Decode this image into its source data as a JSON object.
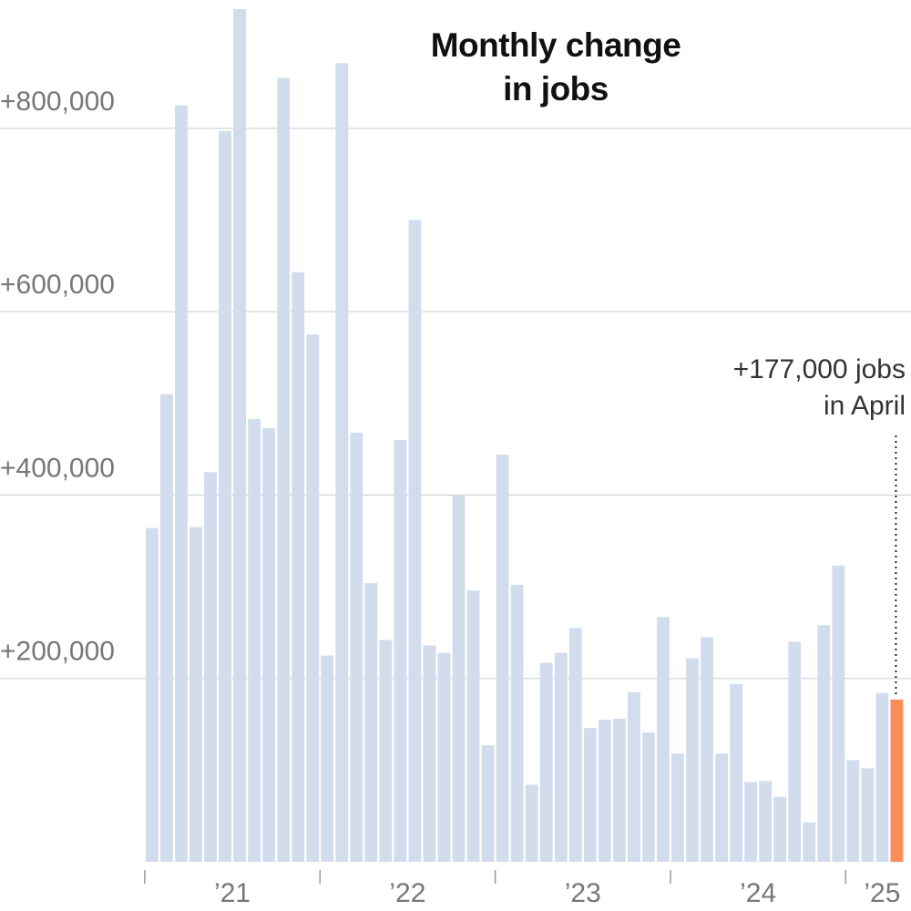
{
  "chart_data": {
    "type": "bar",
    "title_lines": [
      "Monthly change",
      "in jobs"
    ],
    "title": "Monthly change in jobs",
    "xlabel": "",
    "ylabel": "",
    "ylim": [
      0,
      930000
    ],
    "yticks": [
      {
        "value": 200000,
        "label": "+200,000"
      },
      {
        "value": 400000,
        "label": "+400,000"
      },
      {
        "value": 600000,
        "label": "+600,000"
      },
      {
        "value": 800000,
        "label": "+800,000"
      }
    ],
    "grid": true,
    "year_labels": [
      {
        "label": "’21",
        "index": 5.5
      },
      {
        "label": "’22",
        "index": 17.5
      },
      {
        "label": "’23",
        "index": 29.5
      },
      {
        "label": "’24",
        "index": 41.5
      },
      {
        "label": "’25",
        "index": 50
      }
    ],
    "year_boundaries": [
      0,
      12,
      24,
      36,
      48
    ],
    "values": [
      364000,
      510000,
      825000,
      365000,
      425000,
      797000,
      930000,
      483000,
      473000,
      855000,
      643000,
      575000,
      225000,
      871000,
      468000,
      304000,
      242000,
      460000,
      700000,
      236000,
      228000,
      400000,
      296000,
      127000,
      444000,
      302000,
      84000,
      217000,
      228000,
      255000,
      146000,
      155000,
      156000,
      185000,
      141000,
      267000,
      118000,
      222000,
      245000,
      118000,
      194000,
      87000,
      88000,
      71000,
      240000,
      43000,
      258000,
      323000,
      111000,
      102000,
      184000,
      177000
    ],
    "highlight": {
      "index": 51,
      "value": 177000,
      "color": "#fb8c5a",
      "label_lines": [
        "+177,000 jobs",
        "in April"
      ]
    },
    "colors": {
      "bar": "#d1dced",
      "highlight": "#fb8c5a",
      "grid": "#cccccc",
      "tick_text": "#777777"
    }
  }
}
